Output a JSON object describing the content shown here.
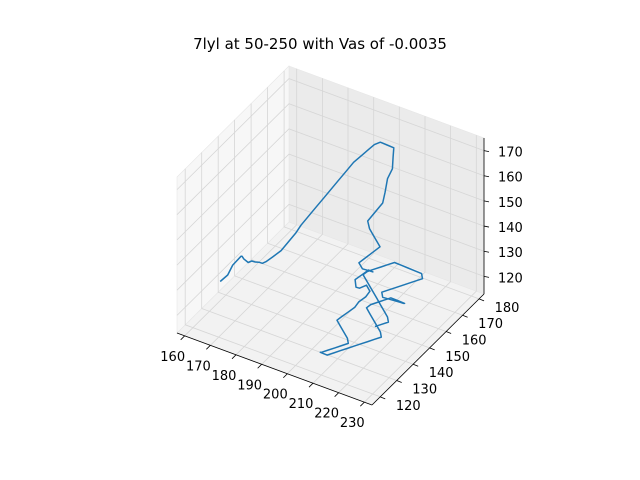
{
  "chart_data": {
    "type": "line3d",
    "title": "7lyl at 50-250 with Vas of -0.0035",
    "xlabel": "",
    "ylabel": "",
    "zlabel": "",
    "x_ticks": [
      "160",
      "170",
      "180",
      "190",
      "200",
      "210",
      "220",
      "230"
    ],
    "y_ticks": [
      "120",
      "130",
      "140",
      "150",
      "160",
      "170",
      "180"
    ],
    "z_ticks": [
      "120",
      "130",
      "140",
      "150",
      "160",
      "170"
    ],
    "xlim": [
      157,
      233
    ],
    "ylim": [
      115,
      183
    ],
    "zlim": [
      113,
      175
    ],
    "grid": true,
    "series_color": "#1f77b4",
    "series": [
      {
        "x": [
          161,
          162,
          162,
          164,
          165,
          167,
          170,
          172,
          174,
          176,
          178,
          180,
          182,
          184,
          186,
          187,
          188,
          188,
          189,
          190,
          191,
          192,
          193,
          194,
          195,
          196,
          197,
          198,
          199,
          201,
          203,
          204,
          205,
          205,
          206,
          207,
          206,
          205,
          207,
          209,
          211,
          213,
          211,
          209,
          208,
          210,
          212,
          214,
          216,
          215,
          213,
          211,
          212,
          214,
          216,
          218,
          220,
          219,
          217,
          216,
          214,
          212,
          211,
          213,
          215,
          217,
          218,
          216,
          214,
          212,
          210,
          209,
          211,
          213,
          215,
          217,
          219,
          221,
          223,
          225,
          227,
          226,
          224,
          222,
          220,
          218,
          219,
          221,
          223,
          225,
          227,
          229,
          228,
          226,
          224,
          222,
          220,
          218,
          216,
          215,
          217,
          219,
          221,
          223,
          225,
          227,
          226,
          224,
          222,
          220,
          218,
          216,
          214,
          212,
          210,
          209,
          211,
          213,
          215,
          217,
          219,
          221,
          223,
          224,
          222,
          220
        ],
        "y": [
          135,
          138,
          141,
          143,
          142,
          140,
          138,
          137,
          136,
          134,
          132,
          131,
          130,
          131,
          133,
          136,
          139,
          142,
          145,
          148,
          151,
          154,
          157,
          160,
          163,
          166,
          169,
          171,
          173,
          174,
          175,
          173,
          171,
          168,
          165,
          162,
          159,
          156,
          154,
          153,
          152,
          151,
          149,
          147,
          146,
          145,
          144,
          143,
          142,
          141,
          140,
          139,
          138,
          137,
          136,
          135,
          134,
          133,
          132,
          131,
          130,
          129,
          128,
          127,
          126,
          125,
          124,
          123,
          122,
          121,
          120,
          121,
          122,
          123,
          124,
          125,
          126,
          127,
          128,
          129,
          130,
          131,
          132,
          133,
          134,
          135,
          136,
          137,
          138,
          139,
          140,
          141,
          142,
          143,
          144,
          145,
          146,
          147,
          148,
          149,
          150,
          151,
          152,
          153,
          154,
          155,
          156,
          155,
          154,
          153,
          152,
          151,
          150,
          149,
          148,
          147,
          146,
          145,
          144,
          143,
          142,
          141,
          140,
          139,
          138,
          137
        ],
        "z": [
          122,
          123,
          125,
          128,
          129,
          130,
          131,
          133,
          134,
          136,
          138,
          139,
          141,
          143,
          145,
          147,
          149,
          150,
          152,
          154,
          156,
          158,
          160,
          162,
          164,
          165,
          166,
          167,
          167,
          166,
          165,
          163,
          160,
          158,
          155,
          153,
          151,
          149,
          148,
          147,
          146,
          145,
          143,
          141,
          140,
          139,
          140,
          141,
          142,
          143,
          141,
          139,
          137,
          138,
          140,
          142,
          141,
          139,
          137,
          135,
          133,
          131,
          130,
          129,
          128,
          127,
          126,
          125,
          124,
          123,
          122,
          121,
          120,
          121,
          122,
          123,
          124,
          125,
          126,
          127,
          128,
          129,
          130,
          131,
          132,
          133,
          134,
          135,
          136,
          137,
          136,
          135,
          134,
          133,
          132,
          131,
          130,
          129,
          128,
          129,
          130,
          131,
          132,
          133,
          134,
          135,
          136,
          137,
          138,
          139,
          140,
          139,
          138,
          137,
          136,
          135,
          134,
          133,
          132,
          131,
          130,
          129,
          128,
          127,
          126,
          125
        ]
      }
    ]
  }
}
